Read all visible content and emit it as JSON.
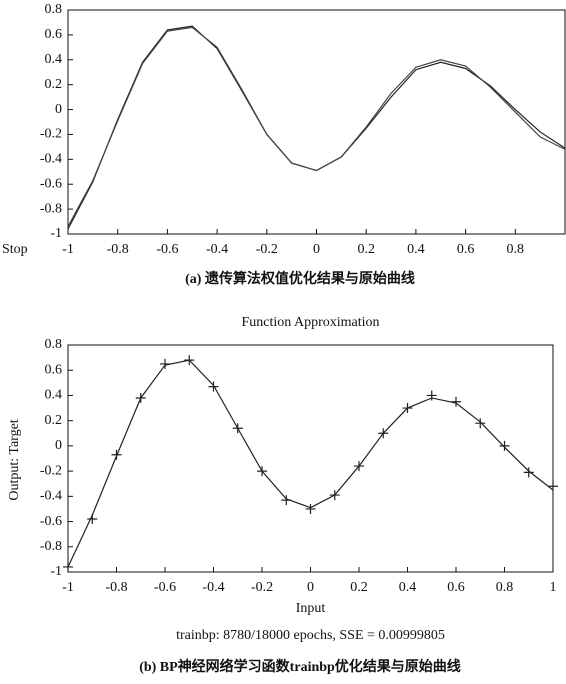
{
  "chart_data": [
    {
      "type": "line",
      "annotation": "Stop",
      "caption": "(a) 遗传算法权值优化结果与原始曲线",
      "x": [
        -1,
        -0.9,
        -0.8,
        -0.7,
        -0.6,
        -0.5,
        -0.4,
        -0.3,
        -0.2,
        -0.1,
        0,
        0.1,
        0.2,
        0.3,
        0.4,
        0.5,
        0.6,
        0.7,
        0.8,
        0.9,
        1
      ],
      "series": [
        {
          "color": "#222",
          "values": [
            -0.96,
            -0.58,
            -0.08,
            0.38,
            0.64,
            0.67,
            0.49,
            0.15,
            -0.2,
            -0.43,
            -0.49,
            -0.38,
            -0.15,
            0.1,
            0.32,
            0.38,
            0.33,
            0.19,
            0.0,
            -0.18,
            -0.31
          ]
        },
        {
          "color": "#444",
          "values": [
            -0.94,
            -0.57,
            -0.09,
            0.37,
            0.63,
            0.66,
            0.5,
            0.16,
            -0.2,
            -0.43,
            -0.49,
            -0.38,
            -0.14,
            0.13,
            0.34,
            0.4,
            0.35,
            0.18,
            -0.02,
            -0.22,
            -0.32
          ]
        }
      ],
      "xlim": [
        -1,
        1
      ],
      "xticks": [
        -1,
        -0.8,
        -0.6,
        -0.4,
        -0.2,
        0,
        0.2,
        0.4,
        0.6,
        0.8
      ],
      "ylim": [
        -1,
        0.8
      ],
      "yticks": [
        -1,
        -0.8,
        -0.6,
        -0.4,
        -0.2,
        0,
        0.2,
        0.4,
        0.6,
        0.8
      ]
    },
    {
      "type": "line",
      "title": "Function Approximation",
      "xlabel": "Input",
      "ylabel": "Output: Target",
      "note": "trainbp:  8780/18000 epochs, SSE = 0.00999805",
      "caption": "(b) BP神经网络学习函数trainbp优化结果与原始曲线",
      "x": [
        -1,
        -0.9,
        -0.8,
        -0.7,
        -0.6,
        -0.5,
        -0.4,
        -0.3,
        -0.2,
        -0.1,
        0,
        0.1,
        0.2,
        0.3,
        0.4,
        0.5,
        0.6,
        0.7,
        0.8,
        0.9,
        1
      ],
      "series": [
        {
          "color": "#222",
          "marker": "+",
          "values": [
            -0.96,
            -0.58,
            -0.07,
            0.38,
            0.65,
            0.68,
            0.47,
            0.14,
            -0.2,
            -0.43,
            -0.5,
            -0.39,
            -0.16,
            0.1,
            0.3,
            0.4,
            0.35,
            0.18,
            0.0,
            -0.21,
            -0.32
          ]
        },
        {
          "color": "#222",
          "values": [
            -0.96,
            -0.55,
            -0.08,
            0.38,
            0.64,
            0.68,
            0.48,
            0.14,
            -0.2,
            -0.42,
            -0.49,
            -0.39,
            -0.16,
            0.1,
            0.3,
            0.38,
            0.34,
            0.19,
            -0.01,
            -0.2,
            -0.35
          ]
        }
      ],
      "xlim": [
        -1,
        1
      ],
      "xticks": [
        -1,
        -0.8,
        -0.6,
        -0.4,
        -0.2,
        0,
        0.2,
        0.4,
        0.6,
        0.8,
        1
      ],
      "ylim": [
        -1,
        0.8
      ],
      "yticks": [
        -1,
        -0.8,
        -0.6,
        -0.4,
        -0.2,
        0,
        0.2,
        0.4,
        0.6,
        0.8
      ]
    }
  ]
}
